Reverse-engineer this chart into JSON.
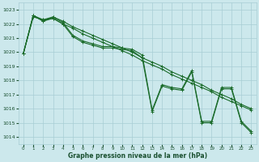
{
  "xlabel": "Graphe pression niveau de la mer (hPa)",
  "background_color": "#cce8ec",
  "grid_color": "#a8cdd4",
  "line_color": "#1a6b2a",
  "xlim": [
    -0.5,
    23.5
  ],
  "ylim": [
    1013.5,
    1023.5
  ],
  "yticks": [
    1014,
    1015,
    1016,
    1017,
    1018,
    1019,
    1020,
    1021,
    1022,
    1023
  ],
  "xticks": [
    0,
    1,
    2,
    3,
    4,
    5,
    6,
    7,
    8,
    9,
    10,
    11,
    12,
    13,
    14,
    15,
    16,
    17,
    18,
    19,
    20,
    21,
    22,
    23
  ],
  "line_jagged1": [
    1019.9,
    1022.6,
    1022.2,
    1022.5,
    1022.1,
    1021.2,
    1020.8,
    1020.6,
    1020.4,
    1020.4,
    1020.3,
    1020.2,
    1019.8,
    1015.9,
    1017.7,
    1017.5,
    1017.4,
    1018.7,
    1015.1,
    1015.1,
    1017.5,
    1017.5,
    1015.1,
    1014.4
  ],
  "line_jagged2": [
    1019.9,
    1022.6,
    1022.2,
    1022.4,
    1022.0,
    1021.1,
    1020.7,
    1020.5,
    1020.3,
    1020.3,
    1020.2,
    1020.1,
    1019.6,
    1015.8,
    1017.6,
    1017.4,
    1017.3,
    1018.6,
    1015.0,
    1015.0,
    1017.4,
    1017.4,
    1015.0,
    1014.3
  ],
  "line_diagonal": [
    1019.9,
    1022.5,
    1022.3,
    1022.4,
    1022.0,
    1021.7,
    1021.3,
    1021.0,
    1020.7,
    1020.4,
    1020.1,
    1019.8,
    1019.4,
    1019.1,
    1018.8,
    1018.4,
    1018.1,
    1017.8,
    1017.5,
    1017.2,
    1016.8,
    1016.5,
    1016.2,
    1015.9
  ],
  "line_diagonal2": [
    1019.9,
    1022.6,
    1022.3,
    1022.5,
    1022.2,
    1021.8,
    1021.5,
    1021.2,
    1020.9,
    1020.6,
    1020.3,
    1020.0,
    1019.6,
    1019.3,
    1019.0,
    1018.6,
    1018.3,
    1018.0,
    1017.7,
    1017.3,
    1017.0,
    1016.7,
    1016.3,
    1016.0
  ]
}
